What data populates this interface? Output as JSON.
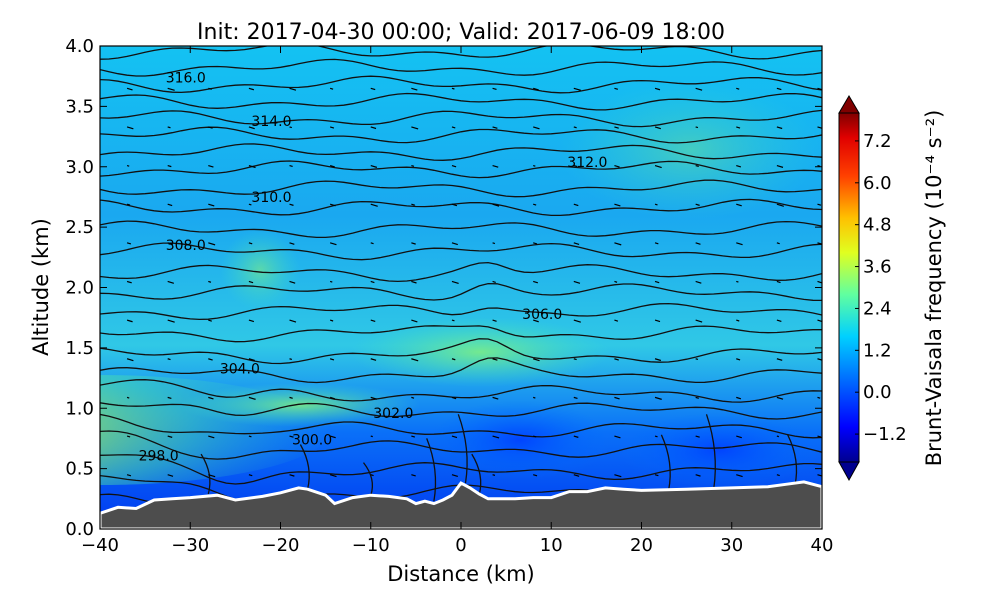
{
  "chart_data": {
    "type": "heatmap",
    "title": "Init: 2017-04-30 00:00; Valid: 2017-06-09 18:00",
    "xlabel": "Distance (km)",
    "ylabel": "Altitude (km)",
    "xlim": [
      -40,
      40
    ],
    "ylim": [
      0.0,
      4.0
    ],
    "x_ticks": [
      -40,
      -30,
      -20,
      -10,
      0,
      10,
      20,
      30,
      40
    ],
    "x_tick_labels": [
      "−40",
      "−30",
      "−20",
      "−10",
      "0",
      "10",
      "20",
      "30",
      "40"
    ],
    "y_ticks": [
      0.0,
      0.5,
      1.0,
      1.5,
      2.0,
      2.5,
      3.0,
      3.5,
      4.0
    ],
    "y_tick_labels": [
      "0.0",
      "0.5",
      "1.0",
      "1.5",
      "2.0",
      "2.5",
      "3.0",
      "3.5",
      "4.0"
    ],
    "colorbar": {
      "label": "Brunt-Vaisala frequency (10⁻⁴ s⁻²)",
      "range": [
        -2.0,
        8.0
      ],
      "ticks": [
        -1.2,
        0.0,
        1.2,
        2.4,
        3.6,
        4.8,
        6.0,
        7.2
      ],
      "tick_labels": [
        "−1.2",
        "0.0",
        "1.2",
        "2.4",
        "3.6",
        "4.8",
        "6.0",
        "7.2"
      ],
      "colormap": "jet",
      "extend": "both"
    },
    "contour_levels": [
      298.0,
      300.0,
      302.0,
      304.0,
      306.0,
      308.0,
      310.0,
      312.0,
      314.0,
      316.0
    ],
    "contour_labels": [
      {
        "text": "298.0",
        "x": -33.5,
        "y": 0.61
      },
      {
        "text": "300.0",
        "x": -16.5,
        "y": 0.74
      },
      {
        "text": "302.0",
        "x": -7.5,
        "y": 0.96
      },
      {
        "text": "304.0",
        "x": -24.5,
        "y": 1.33
      },
      {
        "text": "306.0",
        "x": 9.0,
        "y": 1.78
      },
      {
        "text": "308.0",
        "x": -30.5,
        "y": 2.35
      },
      {
        "text": "310.0",
        "x": -21.0,
        "y": 2.75
      },
      {
        "text": "312.0",
        "x": 14.0,
        "y": 3.04
      },
      {
        "text": "314.0",
        "x": -21.0,
        "y": 3.38
      },
      {
        "text": "316.0",
        "x": -30.5,
        "y": 3.74
      }
    ],
    "terrain_profile": {
      "x": [
        -40,
        -38,
        -36,
        -34,
        -32,
        -30,
        -27,
        -25,
        -22,
        -20,
        -18,
        -17,
        -15,
        -14,
        -12,
        -10,
        -8,
        -6,
        -5,
        -4,
        -3,
        -2,
        -1,
        0,
        1,
        2,
        3,
        4,
        6,
        8,
        10,
        12,
        14,
        16,
        18,
        20,
        25,
        30,
        34,
        36,
        38,
        40
      ],
      "y": [
        0.13,
        0.18,
        0.17,
        0.24,
        0.25,
        0.26,
        0.28,
        0.24,
        0.27,
        0.3,
        0.34,
        0.33,
        0.28,
        0.21,
        0.26,
        0.28,
        0.27,
        0.25,
        0.21,
        0.23,
        0.21,
        0.24,
        0.28,
        0.38,
        0.34,
        0.29,
        0.25,
        0.25,
        0.25,
        0.26,
        0.26,
        0.31,
        0.31,
        0.34,
        0.33,
        0.32,
        0.33,
        0.34,
        0.35,
        0.37,
        0.39,
        0.35
      ]
    },
    "grid": false,
    "legend": "none"
  }
}
